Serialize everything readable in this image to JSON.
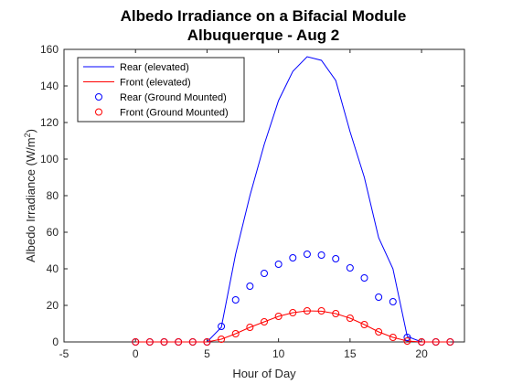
{
  "chart_data": {
    "type": "line",
    "title": "Albedo Irradiance on a Bifacial Module",
    "subtitle": "Albuquerque - Aug 2",
    "xlabel": "Hour of Day",
    "ylabel_main": "Albedo Irradiance (W/m",
    "ylabel_sup": "2",
    "ylabel_close": ")",
    "xlim": [
      -5,
      23
    ],
    "ylim": [
      0,
      160
    ],
    "xticks": [
      -5,
      0,
      5,
      10,
      15,
      20
    ],
    "yticks": [
      0,
      20,
      40,
      60,
      80,
      100,
      120,
      140,
      160
    ],
    "grid": false,
    "legend_position": "top-left",
    "series": [
      {
        "name": "Rear (elevated)",
        "style": "line",
        "color": "#0000ff",
        "x": [
          0,
          1,
          2,
          3,
          4,
          5,
          6,
          7,
          8,
          9,
          10,
          11,
          12,
          13,
          14,
          15,
          16,
          17,
          18,
          19,
          20,
          21,
          22
        ],
        "y": [
          0,
          0,
          0,
          0,
          0,
          0,
          8,
          48,
          80,
          108,
          132,
          148,
          156,
          154,
          143,
          115,
          90,
          57,
          40,
          3,
          0,
          0,
          0
        ]
      },
      {
        "name": "Front (elevated)",
        "style": "line",
        "color": "#ff0000",
        "x": [
          0,
          1,
          2,
          3,
          4,
          5,
          6,
          7,
          8,
          9,
          10,
          11,
          12,
          13,
          14,
          15,
          16,
          17,
          18,
          19,
          20,
          21,
          22
        ],
        "y": [
          0,
          0,
          0,
          0,
          0,
          0,
          1.5,
          4.5,
          8,
          11,
          14,
          16,
          17,
          16.8,
          15.5,
          13,
          9.5,
          5.5,
          2.5,
          0.5,
          0,
          0,
          0
        ]
      },
      {
        "name": "Rear (Ground Mounted)",
        "style": "marker",
        "color": "#0000ff",
        "x": [
          0,
          1,
          2,
          3,
          4,
          5,
          6,
          7,
          8,
          9,
          10,
          11,
          12,
          13,
          14,
          15,
          16,
          17,
          18,
          19,
          20,
          21,
          22
        ],
        "y": [
          0,
          0,
          0,
          0,
          0,
          0,
          8.5,
          23,
          30.5,
          37.5,
          42.5,
          46,
          48,
          47.5,
          45.5,
          40.5,
          35,
          24.5,
          22,
          2.5,
          0,
          0,
          0
        ]
      },
      {
        "name": "Front (Ground Mounted)",
        "style": "marker",
        "color": "#ff0000",
        "x": [
          0,
          1,
          2,
          3,
          4,
          5,
          6,
          7,
          8,
          9,
          10,
          11,
          12,
          13,
          14,
          15,
          16,
          17,
          18,
          19,
          20,
          21,
          22
        ],
        "y": [
          0,
          0,
          0,
          0,
          0,
          0,
          1.5,
          4.5,
          8,
          11,
          14,
          16,
          17,
          17,
          15.5,
          13,
          9.5,
          5.5,
          2.5,
          0.5,
          0,
          0,
          0
        ]
      }
    ]
  }
}
